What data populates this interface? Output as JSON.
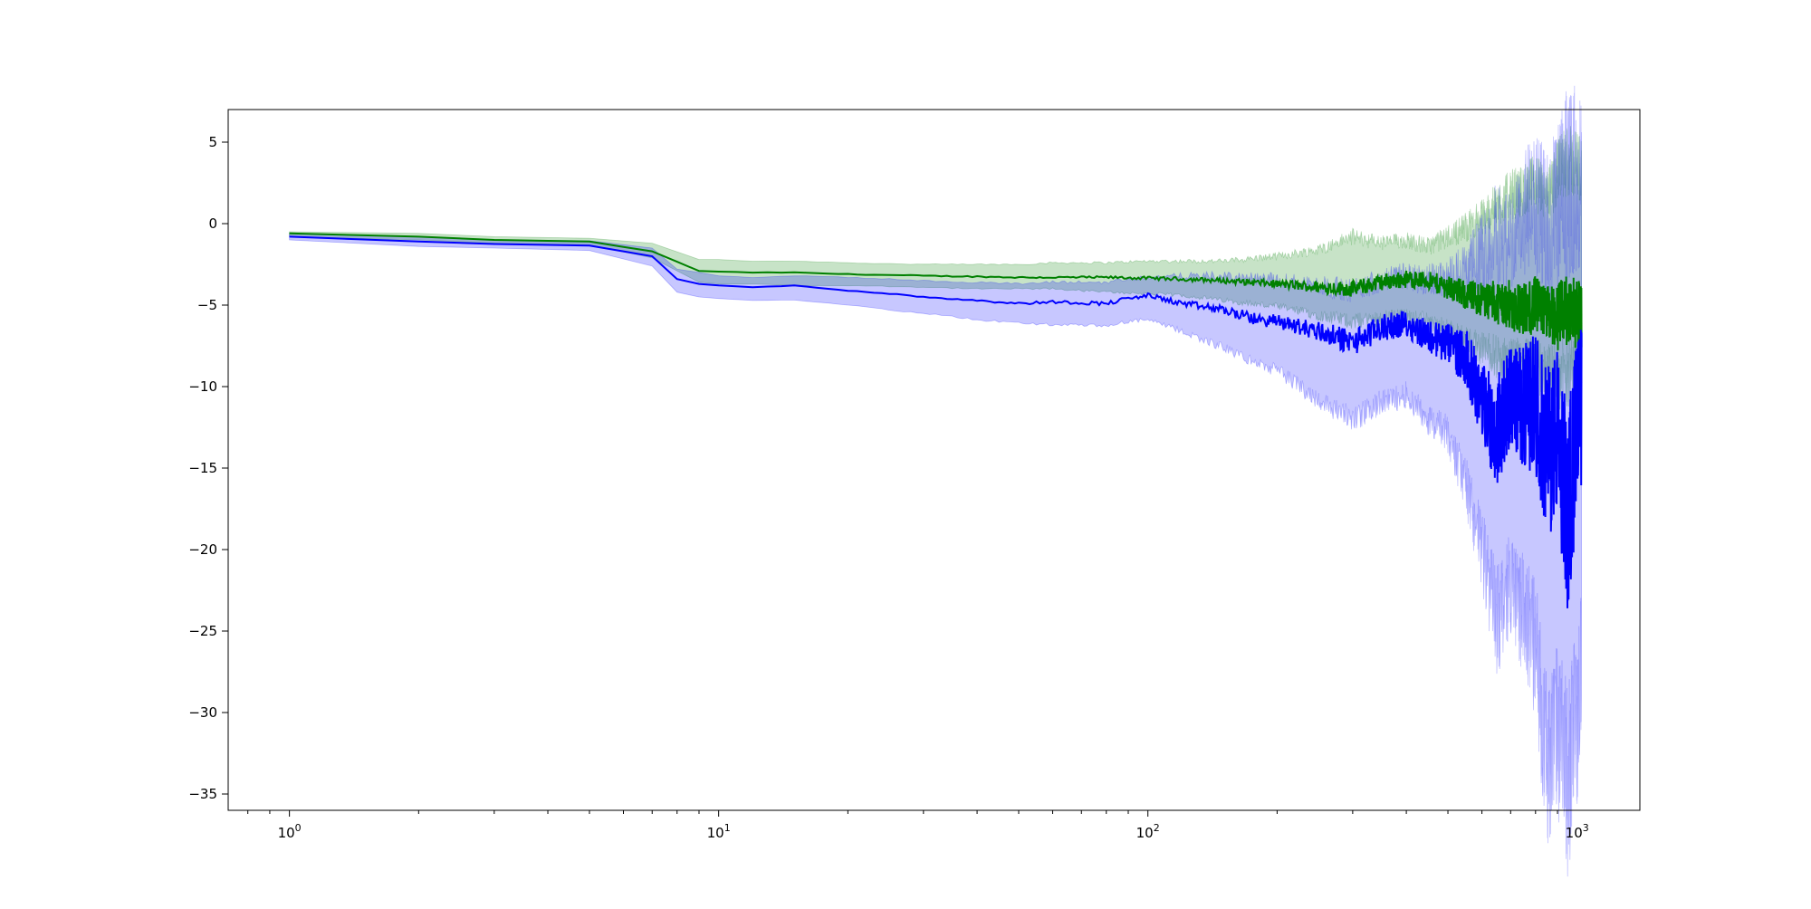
{
  "chart_data": {
    "type": "line",
    "xscale": "log",
    "xlim": [
      0.72,
      1400
    ],
    "ylim": [
      -36,
      7
    ],
    "grid": false,
    "x_ticks": [
      {
        "value": 1,
        "base": "10",
        "exp": "0"
      },
      {
        "value": 10,
        "base": "10",
        "exp": "1"
      },
      {
        "value": 100,
        "base": "10",
        "exp": "2"
      },
      {
        "value": 1000,
        "base": "10",
        "exp": "3"
      }
    ],
    "y_ticks": [
      {
        "value": 5,
        "label": "5"
      },
      {
        "value": 0,
        "label": "0"
      },
      {
        "value": -5,
        "label": "−5"
      },
      {
        "value": -10,
        "label": "−10"
      },
      {
        "value": -15,
        "label": "−15"
      },
      {
        "value": -20,
        "label": "−20"
      },
      {
        "value": -25,
        "label": "−25"
      },
      {
        "value": -30,
        "label": "−30"
      },
      {
        "value": -35,
        "label": "−35"
      }
    ],
    "series": [
      {
        "color": "#008000",
        "band_color": "#008000",
        "x": [
          1,
          2,
          3,
          5,
          7,
          9,
          10,
          12,
          15,
          20,
          30,
          40,
          50,
          60,
          80,
          100,
          120,
          150,
          200,
          250,
          300,
          350,
          400,
          450,
          500,
          550,
          600,
          650,
          700,
          750,
          800,
          850,
          900,
          950,
          1000,
          1024
        ],
        "mean": [
          -0.6,
          -0.8,
          -1.0,
          -1.1,
          -1.7,
          -2.9,
          -2.95,
          -3.0,
          -3.0,
          -3.1,
          -3.2,
          -3.25,
          -3.3,
          -3.3,
          -3.3,
          -3.35,
          -3.4,
          -3.5,
          -3.7,
          -3.9,
          -4.0,
          -3.6,
          -3.4,
          -3.5,
          -3.9,
          -4.4,
          -4.6,
          -4.8,
          -5.0,
          -5.3,
          -5.0,
          -5.5,
          -5.7,
          -5.3,
          -5.5,
          -5.5
        ],
        "upper": [
          -0.5,
          -0.6,
          -0.8,
          -0.9,
          -1.2,
          -2.2,
          -2.2,
          -2.3,
          -2.3,
          -2.4,
          -2.5,
          -2.5,
          -2.5,
          -2.4,
          -2.4,
          -2.3,
          -2.3,
          -2.3,
          -2.0,
          -1.6,
          -0.8,
          -1.2,
          -1.0,
          -1.4,
          -0.8,
          -0.2,
          0.4,
          1.2,
          1.8,
          2.0,
          2.6,
          1.5,
          3.2,
          3.9,
          3.6,
          3.3
        ],
        "lower": [
          -0.8,
          -1.0,
          -1.2,
          -1.3,
          -2.1,
          -3.6,
          -3.7,
          -3.7,
          -3.8,
          -3.8,
          -3.9,
          -4.0,
          -4.0,
          -4.0,
          -4.2,
          -4.3,
          -4.4,
          -4.7,
          -5.1,
          -5.6,
          -6.0,
          -5.8,
          -5.7,
          -6.0,
          -6.6,
          -7.2,
          -7.6,
          -8.2,
          -8.6,
          -8.6,
          -8.8,
          -9.0,
          -9.4,
          -9.0,
          -9.2,
          -9.0
        ]
      },
      {
        "color": "#0000ff",
        "band_color": "#0000ff",
        "x": [
          1,
          2,
          3,
          5,
          7,
          8,
          9,
          10,
          12,
          15,
          20,
          25,
          30,
          40,
          50,
          60,
          80,
          90,
          100,
          120,
          150,
          180,
          200,
          250,
          300,
          350,
          400,
          450,
          500,
          550,
          600,
          650,
          700,
          750,
          800,
          850,
          900,
          950,
          1000,
          1024
        ],
        "mean": [
          -0.8,
          -1.1,
          -1.25,
          -1.35,
          -2.0,
          -3.4,
          -3.7,
          -3.8,
          -3.9,
          -3.8,
          -4.1,
          -4.3,
          -4.5,
          -4.7,
          -4.9,
          -4.8,
          -4.9,
          -4.6,
          -4.4,
          -4.9,
          -5.3,
          -5.9,
          -6.0,
          -6.6,
          -7.3,
          -6.4,
          -6.1,
          -6.9,
          -7.4,
          -8.2,
          -10.8,
          -12.8,
          -10.5,
          -11.3,
          -10.9,
          -14.2,
          -12.8,
          -17.8,
          -12.3,
          -11.5
        ],
        "upper": [
          -0.6,
          -0.8,
          -1.0,
          -1.05,
          -1.5,
          -2.8,
          -3.0,
          -3.2,
          -3.3,
          -3.2,
          -3.3,
          -3.4,
          -3.5,
          -3.6,
          -3.7,
          -3.6,
          -3.6,
          -3.4,
          -3.3,
          -3.2,
          -3.2,
          -3.4,
          -3.4,
          -3.8,
          -4.1,
          -3.4,
          -3.2,
          -3.5,
          -3.2,
          -2.8,
          -1.8,
          -0.6,
          -1.0,
          0.6,
          1.4,
          -0.6,
          0.8,
          2.4,
          2.8,
          2.4
        ],
        "lower": [
          -1.0,
          -1.4,
          -1.5,
          -1.65,
          -2.6,
          -4.2,
          -4.5,
          -4.6,
          -4.7,
          -4.7,
          -5.0,
          -5.3,
          -5.5,
          -5.9,
          -6.1,
          -6.2,
          -6.3,
          -6.0,
          -5.9,
          -6.6,
          -7.6,
          -8.6,
          -9.0,
          -10.8,
          -12.0,
          -11.0,
          -10.5,
          -12.0,
          -13.0,
          -16.0,
          -20.0,
          -24.5,
          -22.0,
          -24.0,
          -26.0,
          -33.0,
          -31.0,
          -34.0,
          -30.0,
          -27.0
        ]
      }
    ]
  }
}
